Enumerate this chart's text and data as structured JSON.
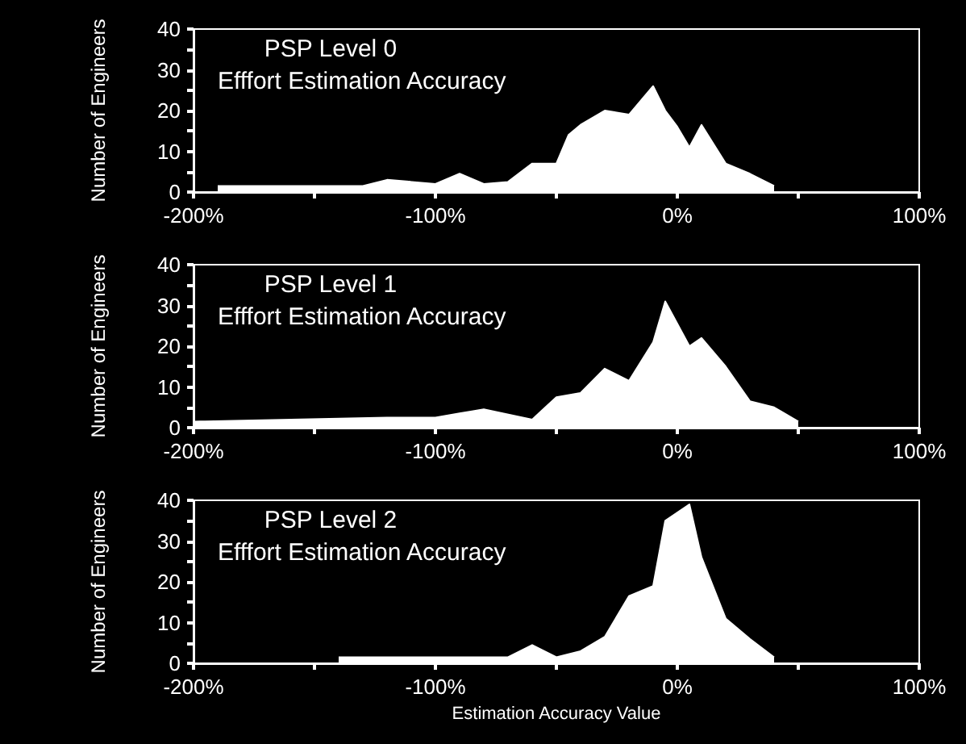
{
  "chart_data": [
    {
      "type": "area",
      "title": "PSP Level 0",
      "subtitle": "Efffort Estimation Accuracy",
      "ylabel": "Number of Engineers",
      "color": "#ffffff",
      "marker": "none",
      "x": [
        -190,
        -130,
        -120,
        -100,
        -90,
        -80,
        -70,
        -60,
        -50,
        -45,
        -40,
        -30,
        -20,
        -10,
        -5,
        0,
        5,
        10,
        20,
        30,
        40
      ],
      "values": [
        1.5,
        1.5,
        3,
        2,
        4.5,
        2,
        2.5,
        7,
        7,
        14,
        16.5,
        20,
        19,
        26,
        20,
        16,
        11,
        16.5,
        7,
        4.5,
        1.5
      ],
      "xlim": [
        -200,
        100
      ],
      "xticks": [
        {
          "value": -200,
          "label": "-200%"
        },
        {
          "value": -150,
          "label": null
        },
        {
          "value": -100,
          "label": "-100%"
        },
        {
          "value": -50,
          "label": null
        },
        {
          "value": 0,
          "label": "0%"
        },
        {
          "value": 50,
          "label": null
        },
        {
          "value": 100,
          "label": "100%"
        }
      ],
      "ylim": [
        0,
        40
      ],
      "yticks": [
        0,
        {
          "value": 5,
          "label": null
        },
        10,
        {
          "value": 15,
          "label": null
        },
        20,
        {
          "value": 25,
          "label": null
        },
        30,
        {
          "value": 35,
          "label": null
        },
        40
      ]
    },
    {
      "type": "area",
      "title": "PSP Level 1",
      "subtitle": "Efffort Estimation Accuracy",
      "ylabel": "Number of Engineers",
      "color": "#ffffff",
      "marker": "none",
      "x": [
        -200,
        -120,
        -100,
        -90,
        -80,
        -60,
        -50,
        -40,
        -30,
        -20,
        -10,
        -5,
        5,
        10,
        20,
        30,
        40,
        50
      ],
      "values": [
        1.5,
        2.5,
        2.5,
        3.5,
        4.5,
        2,
        7.5,
        8.5,
        14.5,
        11.5,
        21,
        31,
        20,
        22,
        15,
        6.5,
        5,
        1.5
      ],
      "xlim": [
        -200,
        100
      ],
      "xticks": [
        {
          "value": -200,
          "label": "-200%"
        },
        {
          "value": -150,
          "label": null
        },
        {
          "value": -100,
          "label": "-100%"
        },
        {
          "value": -50,
          "label": null
        },
        {
          "value": 0,
          "label": "0%"
        },
        {
          "value": 50,
          "label": null
        },
        {
          "value": 100,
          "label": "100%"
        }
      ],
      "ylim": [
        0,
        40
      ],
      "yticks": [
        0,
        {
          "value": 5,
          "label": null
        },
        10,
        {
          "value": 15,
          "label": null
        },
        20,
        {
          "value": 25,
          "label": null
        },
        30,
        {
          "value": 35,
          "label": null
        },
        40
      ]
    },
    {
      "type": "area",
      "title": "PSP Level 2",
      "subtitle": "Efffort Estimation Accuracy",
      "ylabel": "Number of Engineers",
      "xlabel": "Estimation Accuracy Value",
      "color": "#ffffff",
      "marker": "none",
      "x": [
        -140,
        -70,
        -60,
        -50,
        -40,
        -30,
        -20,
        -10,
        -5,
        5,
        10,
        20,
        30,
        40
      ],
      "values": [
        1.5,
        1.5,
        4.5,
        1.5,
        3,
        6.5,
        16.5,
        19,
        35,
        39,
        26,
        11,
        6,
        1.5
      ],
      "xlim": [
        -200,
        100
      ],
      "xticks": [
        {
          "value": -200,
          "label": "-200%"
        },
        {
          "value": -150,
          "label": null
        },
        {
          "value": -100,
          "label": "-100%"
        },
        {
          "value": -50,
          "label": null
        },
        {
          "value": 0,
          "label": "0%"
        },
        {
          "value": 50,
          "label": null
        },
        {
          "value": 100,
          "label": "100%"
        }
      ],
      "ylim": [
        0,
        40
      ],
      "yticks": [
        0,
        {
          "value": 5,
          "label": null
        },
        10,
        {
          "value": 15,
          "label": null
        },
        20,
        {
          "value": 25,
          "label": null
        },
        30,
        {
          "value": 35,
          "label": null
        },
        40
      ]
    }
  ]
}
